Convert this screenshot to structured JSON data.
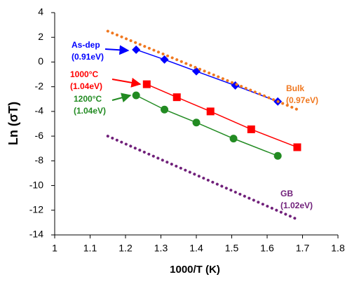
{
  "chart_data": {
    "type": "line",
    "x_label": "1000/T (K)",
    "y_label": "Ln (σT)",
    "xlim": [
      1,
      1.8
    ],
    "xticks": [
      1,
      1.1,
      1.2,
      1.3,
      1.4,
      1.5,
      1.6,
      1.7,
      1.8
    ],
    "ylim": [
      -14,
      4
    ],
    "yticks": [
      -14,
      -12,
      -10,
      -8,
      -6,
      -4,
      -2,
      0,
      2,
      4
    ],
    "grid": false,
    "series": [
      {
        "name": "As-dep",
        "energy": "(0.91eV)",
        "color": "#0000ff",
        "marker": "diamond",
        "line_style": "solid",
        "x": [
          1.23,
          1.31,
          1.4,
          1.51,
          1.63
        ],
        "values": [
          1.0,
          0.2,
          -0.75,
          -1.9,
          -3.2
        ]
      },
      {
        "name": "1000°C",
        "energy": "(1.04eV)",
        "color": "#ff0000",
        "marker": "square",
        "line_style": "solid",
        "x": [
          1.26,
          1.345,
          1.44,
          1.555,
          1.685
        ],
        "values": [
          -1.8,
          -2.85,
          -4.0,
          -5.45,
          -6.9
        ]
      },
      {
        "name": "1200°C",
        "energy": "(1.04eV)",
        "color": "#228b22",
        "marker": "circle",
        "line_style": "solid",
        "x": [
          1.23,
          1.31,
          1.4,
          1.505,
          1.63
        ],
        "values": [
          -2.7,
          -3.85,
          -4.9,
          -6.2,
          -7.6
        ]
      },
      {
        "name": "Bulk",
        "energy": "(0.97eV)",
        "color": "#f07820",
        "marker": "none",
        "line_style": "dotted",
        "x": [
          1.15,
          1.69
        ],
        "values": [
          2.5,
          -3.9
        ]
      },
      {
        "name": "GB",
        "energy": "(1.02eV)",
        "color": "#70207a",
        "marker": "none",
        "line_style": "dotted",
        "x": [
          1.15,
          1.69
        ],
        "values": [
          -6.0,
          -12.8
        ]
      }
    ]
  }
}
